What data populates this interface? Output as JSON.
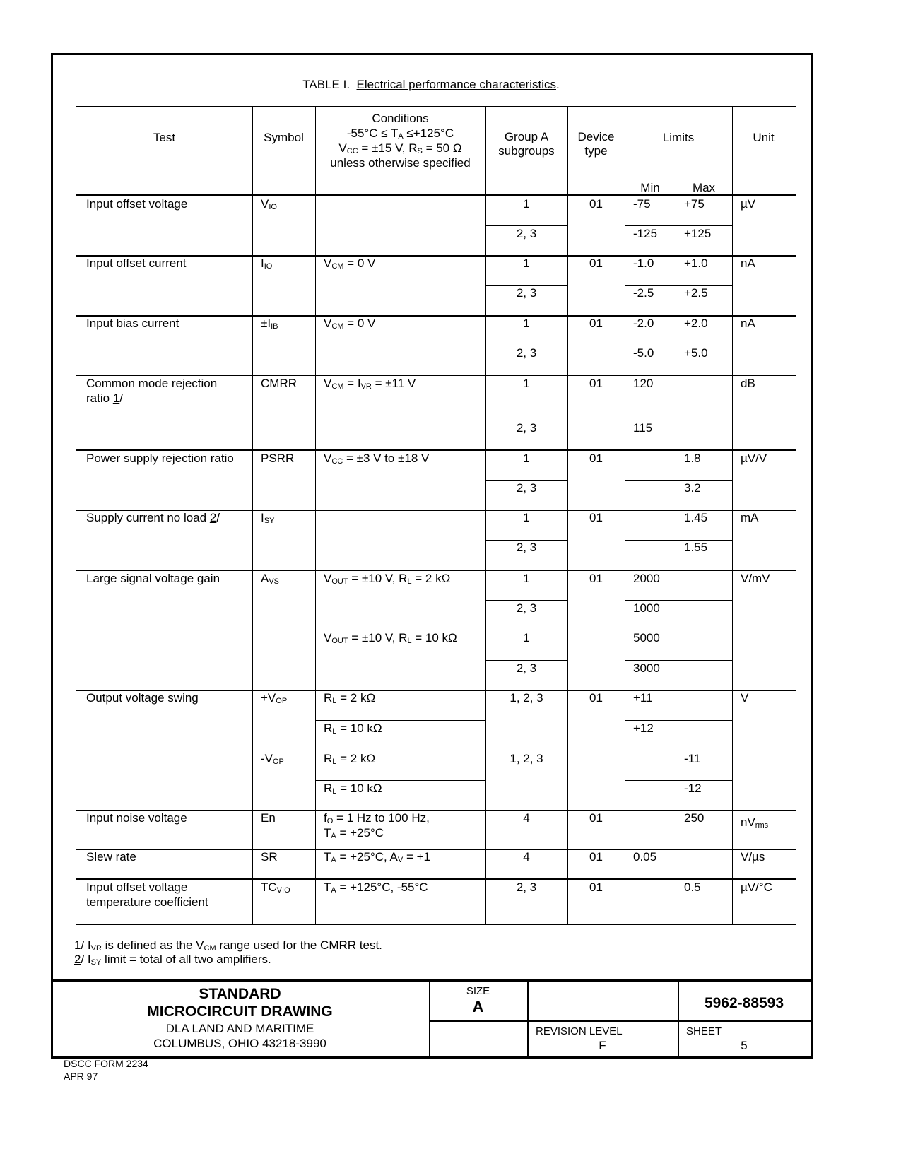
{
  "title": {
    "prefix": "TABLE I.",
    "underlined": "Electrical performance characteristics",
    "suffix": "."
  },
  "header": {
    "test": "Test",
    "symbol": "Symbol",
    "conditions": [
      "Conditions",
      [
        {
          "t": "-55°C ≤ T"
        },
        {
          "s": "A"
        },
        {
          "t": " ≤+125°C"
        }
      ],
      [
        {
          "t": "V"
        },
        {
          "s": "CC"
        },
        {
          "t": " = ±15 V, R"
        },
        {
          "s": "S"
        },
        {
          "t": " = 50 Ω"
        }
      ],
      "unless otherwise specified"
    ],
    "group": [
      "Group A",
      "subgroups"
    ],
    "device": [
      "Device",
      "type"
    ],
    "limits": "Limits",
    "min": "Min",
    "max": "Max",
    "unit": "Unit"
  },
  "rows": [
    {
      "test": [
        "Input offset voltage"
      ],
      "cells": [
        {
          "col": "symbol",
          "sub": 0,
          "text": [
            [
              {
                "t": "V"
              },
              {
                "s": "IO"
              }
            ]
          ]
        },
        {
          "col": "group",
          "sub": 0,
          "text": [
            "1"
          ]
        },
        {
          "col": "group",
          "sub": 1,
          "text": [
            "2, 3"
          ]
        },
        {
          "col": "device",
          "sub": 0,
          "text": [
            "01"
          ]
        },
        {
          "col": "min",
          "sub": 0,
          "text": [
            "-75"
          ]
        },
        {
          "col": "min",
          "sub": 1,
          "text": [
            "-125"
          ]
        },
        {
          "col": "max",
          "sub": 0,
          "text": [
            "+75"
          ]
        },
        {
          "col": "max",
          "sub": 1,
          "text": [
            "+125"
          ]
        },
        {
          "col": "unit",
          "sub": 0,
          "text": [
            "µV"
          ]
        }
      ]
    },
    {
      "test": [
        "Input offset current"
      ],
      "cells": [
        {
          "col": "symbol",
          "sub": 0,
          "text": [
            [
              {
                "t": "I"
              },
              {
                "s": "IO"
              }
            ]
          ]
        },
        {
          "col": "cond",
          "sub": 0,
          "text": [
            [
              {
                "t": "V"
              },
              {
                "s": "CM"
              },
              {
                "t": " = 0 V"
              }
            ]
          ]
        },
        {
          "col": "group",
          "sub": 0,
          "text": [
            "1"
          ]
        },
        {
          "col": "group",
          "sub": 1,
          "text": [
            "2, 3"
          ]
        },
        {
          "col": "device",
          "sub": 0,
          "text": [
            "01"
          ]
        },
        {
          "col": "min",
          "sub": 0,
          "text": [
            "-1.0"
          ]
        },
        {
          "col": "min",
          "sub": 1,
          "text": [
            "-2.5"
          ]
        },
        {
          "col": "max",
          "sub": 0,
          "text": [
            "+1.0"
          ]
        },
        {
          "col": "max",
          "sub": 1,
          "text": [
            "+2.5"
          ]
        },
        {
          "col": "unit",
          "sub": 0,
          "text": [
            "nA"
          ]
        }
      ]
    },
    {
      "test": [
        "Input bias current"
      ],
      "cells": [
        {
          "col": "symbol",
          "sub": 0,
          "text": [
            [
              {
                "t": "±I"
              },
              {
                "s": "IB"
              }
            ]
          ]
        },
        {
          "col": "cond",
          "sub": 0,
          "text": [
            [
              {
                "t": "V"
              },
              {
                "s": "CM"
              },
              {
                "t": " = 0 V"
              }
            ]
          ]
        },
        {
          "col": "group",
          "sub": 0,
          "text": [
            "1"
          ]
        },
        {
          "col": "group",
          "sub": 1,
          "text": [
            "2, 3"
          ]
        },
        {
          "col": "device",
          "sub": 0,
          "text": [
            "01"
          ]
        },
        {
          "col": "min",
          "sub": 0,
          "text": [
            "-2.0"
          ]
        },
        {
          "col": "min",
          "sub": 1,
          "text": [
            "-5.0"
          ]
        },
        {
          "col": "max",
          "sub": 0,
          "text": [
            "+2.0"
          ]
        },
        {
          "col": "max",
          "sub": 1,
          "text": [
            "+5.0"
          ]
        },
        {
          "col": "unit",
          "sub": 0,
          "text": [
            "nA"
          ]
        }
      ]
    },
    {
      "test": [
        "Common mode rejection",
        [
          {
            "t": "ratio   "
          },
          {
            "u": "1"
          },
          {
            "t": "/"
          }
        ]
      ],
      "cells": [
        {
          "col": "symbol",
          "sub": 0,
          "text": [
            "CMRR"
          ]
        },
        {
          "col": "cond",
          "sub": 0,
          "text": [
            [
              {
                "t": "V"
              },
              {
                "s": "CM"
              },
              {
                "t": " = I"
              },
              {
                "s": "VR"
              },
              {
                "t": " = ±11 V"
              }
            ]
          ]
        },
        {
          "col": "group",
          "sub": 0,
          "text": [
            "1"
          ]
        },
        {
          "col": "group",
          "sub": 1,
          "text": [
            "2, 3"
          ]
        },
        {
          "col": "device",
          "sub": 0,
          "text": [
            "01"
          ]
        },
        {
          "col": "min",
          "sub": 0,
          "text": [
            "120"
          ]
        },
        {
          "col": "min",
          "sub": 1,
          "text": [
            "115"
          ]
        },
        {
          "col": "unit",
          "sub": 0,
          "text": [
            "dB"
          ]
        }
      ]
    },
    {
      "test": [
        "Power supply rejection ratio"
      ],
      "cells": [
        {
          "col": "symbol",
          "sub": 0,
          "text": [
            "PSRR"
          ]
        },
        {
          "col": "cond",
          "sub": 0,
          "text": [
            [
              {
                "t": "V"
              },
              {
                "s": "CC"
              },
              {
                "t": " = ±3 V to ±18 V"
              }
            ]
          ]
        },
        {
          "col": "group",
          "sub": 0,
          "text": [
            "1"
          ]
        },
        {
          "col": "group",
          "sub": 1,
          "text": [
            "2, 3"
          ]
        },
        {
          "col": "device",
          "sub": 0,
          "text": [
            "01"
          ]
        },
        {
          "col": "max",
          "sub": 0,
          "text": [
            "1.8"
          ]
        },
        {
          "col": "max",
          "sub": 1,
          "text": [
            "3.2"
          ]
        },
        {
          "col": "unit",
          "sub": 0,
          "text": [
            "µV/V"
          ]
        }
      ]
    },
    {
      "test": [
        [
          {
            "t": "Supply current no load   "
          },
          {
            "u": "2"
          },
          {
            "t": "/"
          }
        ]
      ],
      "cells": [
        {
          "col": "symbol",
          "sub": 0,
          "text": [
            [
              {
                "t": "I"
              },
              {
                "s": "SY"
              }
            ]
          ]
        },
        {
          "col": "group",
          "sub": 0,
          "text": [
            "1"
          ]
        },
        {
          "col": "group",
          "sub": 1,
          "text": [
            "2, 3"
          ]
        },
        {
          "col": "device",
          "sub": 0,
          "text": [
            "01"
          ]
        },
        {
          "col": "max",
          "sub": 0,
          "text": [
            "1.45"
          ]
        },
        {
          "col": "max",
          "sub": 1,
          "text": [
            "1.55"
          ]
        },
        {
          "col": "unit",
          "sub": 0,
          "text": [
            "mA"
          ]
        }
      ]
    },
    {
      "test": [
        "Large signal voltage gain"
      ],
      "cells": [
        {
          "col": "symbol",
          "sub": 0,
          "text": [
            [
              {
                "t": "A"
              },
              {
                "s": "VS"
              }
            ]
          ]
        },
        {
          "col": "cond",
          "sub": 0,
          "text": [
            [
              {
                "t": "V"
              },
              {
                "s": "OUT"
              },
              {
                "t": " = ±10 V, R"
              },
              {
                "s": "L"
              },
              {
                "t": " = 2 kΩ"
              }
            ]
          ]
        },
        {
          "col": "cond",
          "sub": 2,
          "text": [
            [
              {
                "t": "V"
              },
              {
                "s": "OUT"
              },
              {
                "t": " = ±10 V, R"
              },
              {
                "s": "L"
              },
              {
                "t": " = 10 kΩ"
              }
            ]
          ]
        },
        {
          "col": "group",
          "sub": 0,
          "text": [
            "1"
          ]
        },
        {
          "col": "group",
          "sub": 1,
          "text": [
            "2, 3"
          ]
        },
        {
          "col": "group",
          "sub": 2,
          "text": [
            "1"
          ]
        },
        {
          "col": "group",
          "sub": 3,
          "text": [
            "2, 3"
          ]
        },
        {
          "col": "device",
          "sub": 0,
          "text": [
            "01"
          ]
        },
        {
          "col": "min",
          "sub": 0,
          "text": [
            "2000"
          ]
        },
        {
          "col": "min",
          "sub": 1,
          "text": [
            "1000"
          ]
        },
        {
          "col": "min",
          "sub": 2,
          "text": [
            "5000"
          ]
        },
        {
          "col": "min",
          "sub": 3,
          "text": [
            "3000"
          ]
        },
        {
          "col": "unit",
          "sub": 0,
          "text": [
            "V/mV"
          ]
        }
      ]
    },
    {
      "test": [
        "Output voltage swing"
      ],
      "cells": [
        {
          "col": "symbol",
          "sub": 0,
          "text": [
            [
              {
                "t": "+V"
              },
              {
                "s": "OP"
              }
            ]
          ]
        },
        {
          "col": "symbol",
          "sub": 2,
          "text": [
            [
              {
                "t": "-V"
              },
              {
                "s": "OP"
              }
            ]
          ]
        },
        {
          "col": "cond",
          "sub": 0,
          "text": [
            [
              {
                "t": "R"
              },
              {
                "s": "L"
              },
              {
                "t": " = 2 kΩ"
              }
            ]
          ]
        },
        {
          "col": "cond",
          "sub": 1,
          "text": [
            [
              {
                "t": "R"
              },
              {
                "s": "L"
              },
              {
                "t": " = 10 kΩ"
              }
            ]
          ]
        },
        {
          "col": "cond",
          "sub": 2,
          "text": [
            [
              {
                "t": "R"
              },
              {
                "s": "L"
              },
              {
                "t": " = 2 kΩ"
              }
            ]
          ]
        },
        {
          "col": "cond",
          "sub": 3,
          "text": [
            [
              {
                "t": "R"
              },
              {
                "s": "L"
              },
              {
                "t": " = 10 kΩ"
              }
            ]
          ]
        },
        {
          "col": "group",
          "sub": 0,
          "text": [
            "1, 2, 3"
          ]
        },
        {
          "col": "group",
          "sub": 2,
          "text": [
            "1, 2, 3"
          ]
        },
        {
          "col": "device",
          "sub": 0,
          "text": [
            "01"
          ]
        },
        {
          "col": "min",
          "sub": 0,
          "text": [
            "+11"
          ]
        },
        {
          "col": "min",
          "sub": 1,
          "text": [
            "+12"
          ]
        },
        {
          "col": "max",
          "sub": 2,
          "text": [
            "-11"
          ]
        },
        {
          "col": "max",
          "sub": 3,
          "text": [
            "-12"
          ]
        },
        {
          "col": "unit",
          "sub": 0,
          "text": [
            "V"
          ]
        }
      ]
    },
    {
      "test": [
        "Input noise voltage"
      ],
      "cells": [
        {
          "col": "symbol",
          "sub": 0,
          "text": [
            "En"
          ]
        },
        {
          "col": "cond",
          "sub": 0,
          "text": [
            [
              {
                "t": "f"
              },
              {
                "s": "O"
              },
              {
                "t": " = 1 Hz to 100 Hz,"
              }
            ],
            [
              {
                "t": "T"
              },
              {
                "s": "A"
              },
              {
                "t": " = +25°C"
              }
            ]
          ]
        },
        {
          "col": "group",
          "sub": 0,
          "text": [
            "4"
          ]
        },
        {
          "col": "device",
          "sub": 0,
          "text": [
            "01"
          ]
        },
        {
          "col": "max",
          "sub": 0,
          "text": [
            "250"
          ]
        },
        {
          "col": "unit",
          "sub": 0,
          "text": [
            [
              {
                "t": "nV"
              },
              {
                "s": "rms"
              }
            ]
          ]
        }
      ]
    },
    {
      "test": [
        "Slew rate"
      ],
      "cells": [
        {
          "col": "symbol",
          "sub": 0,
          "text": [
            "SR"
          ]
        },
        {
          "col": "cond",
          "sub": 0,
          "text": [
            [
              {
                "t": "T"
              },
              {
                "s": "A"
              },
              {
                "t": " = +25°C, A"
              },
              {
                "s": "V"
              },
              {
                "t": " = +1"
              }
            ]
          ]
        },
        {
          "col": "group",
          "sub": 0,
          "text": [
            "4"
          ]
        },
        {
          "col": "device",
          "sub": 0,
          "text": [
            "01"
          ]
        },
        {
          "col": "min",
          "sub": 0,
          "text": [
            "0.05"
          ]
        },
        {
          "col": "unit",
          "sub": 0,
          "text": [
            "V/µs"
          ]
        }
      ]
    },
    {
      "test": [
        "Input offset voltage",
        "temperature coefficient"
      ],
      "cells": [
        {
          "col": "symbol",
          "sub": 0,
          "text": [
            [
              {
                "t": "TC"
              },
              {
                "s": "VIO"
              }
            ]
          ]
        },
        {
          "col": "cond",
          "sub": 0,
          "text": [
            [
              {
                "t": "T"
              },
              {
                "s": "A"
              },
              {
                "t": " = +125°C, -55°C"
              }
            ]
          ]
        },
        {
          "col": "group",
          "sub": 0,
          "text": [
            "2, 3"
          ]
        },
        {
          "col": "device",
          "sub": 0,
          "text": [
            "01"
          ]
        },
        {
          "col": "max",
          "sub": 0,
          "text": [
            "0.5"
          ]
        },
        {
          "col": "unit",
          "sub": 0,
          "text": [
            "µV/°C"
          ]
        }
      ]
    }
  ],
  "footnotes": [
    [
      {
        "u": "1"
      },
      {
        "t": "/  I"
      },
      {
        "s": "VR"
      },
      {
        "t": " is defined as the V"
      },
      {
        "s": "CM"
      },
      {
        "t": " range used for the CMRR test."
      }
    ],
    [
      {
        "u": "2"
      },
      {
        "t": "/  I"
      },
      {
        "s": "SY"
      },
      {
        "t": " limit = total of all two amplifiers."
      }
    ]
  ],
  "title_block": {
    "line1": "STANDARD",
    "line2": "MICROCIRCUIT DRAWING",
    "line3": "DLA LAND AND MARITIME",
    "line4": "COLUMBUS, OHIO 43218-3990",
    "size_label": "SIZE",
    "size_value": "A",
    "drawing_number": "5962-88593",
    "revision_label": "REVISION LEVEL",
    "revision_value": "F",
    "sheet_label": "SHEET",
    "sheet_value": "5"
  },
  "form": {
    "name": "DSCC FORM 2234",
    "date": "APR 97"
  }
}
